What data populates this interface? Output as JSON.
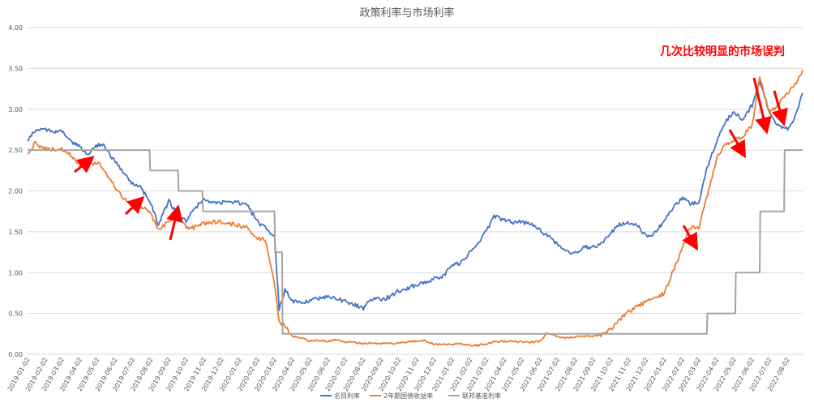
{
  "chart_data": {
    "type": "line",
    "title": "政策利率与市场利率",
    "xlabel": "",
    "ylabel": "",
    "ylim": [
      0,
      4
    ],
    "grid": "horizontal",
    "legend_position": "bottom",
    "y_ticks": [
      "0.00",
      "0.50",
      "1.00",
      "1.50",
      "2.00",
      "2.50",
      "3.00",
      "3.50",
      "4.00"
    ],
    "x_ticks": [
      "2019-01-02",
      "2019-02-02",
      "2019-03-02",
      "2019-04-02",
      "2019-05-02",
      "2019-06-02",
      "2019-07-02",
      "2019-08-02",
      "2019-09-02",
      "2019-10-02",
      "2019-11-02",
      "2019-12-02",
      "2020-01-02",
      "2020-02-02",
      "2020-03-02",
      "2020-04-02",
      "2020-05-02",
      "2020-06-02",
      "2020-07-02",
      "2020-08-02",
      "2020-09-02",
      "2020-10-02",
      "2020-11-02",
      "2020-12-02",
      "2021-01-02",
      "2021-02-02",
      "2021-03-02",
      "2021-04-02",
      "2021-05-02",
      "2021-06-02",
      "2021-07-02",
      "2021-08-02",
      "2021-09-02",
      "2021-10-02",
      "2021-11-02",
      "2021-12-02",
      "2022-01-02",
      "2022-02-02",
      "2022-03-02",
      "2022-04-02",
      "2022-05-02",
      "2022-06-02",
      "2022-07-02",
      "2022-08-02"
    ],
    "series": [
      {
        "name": "名目利率",
        "color": "#4472c4",
        "points": [
          [
            "2019-01-02",
            2.62
          ],
          [
            "2019-01-15",
            2.74
          ],
          [
            "2019-02-02",
            2.75
          ],
          [
            "2019-02-20",
            2.72
          ],
          [
            "2019-03-02",
            2.73
          ],
          [
            "2019-03-15",
            2.62
          ],
          [
            "2019-04-02",
            2.55
          ],
          [
            "2019-04-15",
            2.45
          ],
          [
            "2019-05-02",
            2.56
          ],
          [
            "2019-05-15",
            2.55
          ],
          [
            "2019-06-02",
            2.35
          ],
          [
            "2019-06-15",
            2.24
          ],
          [
            "2019-07-02",
            2.08
          ],
          [
            "2019-07-15",
            2.05
          ],
          [
            "2019-08-02",
            1.85
          ],
          [
            "2019-08-15",
            1.58
          ],
          [
            "2019-09-02",
            1.88
          ],
          [
            "2019-09-15",
            1.72
          ],
          [
            "2019-10-02",
            1.62
          ],
          [
            "2019-10-15",
            1.78
          ],
          [
            "2019-11-02",
            1.9
          ],
          [
            "2019-11-15",
            1.85
          ],
          [
            "2019-12-02",
            1.85
          ],
          [
            "2019-12-15",
            1.88
          ],
          [
            "2020-01-02",
            1.85
          ],
          [
            "2020-01-15",
            1.82
          ],
          [
            "2020-02-02",
            1.62
          ],
          [
            "2020-02-15",
            1.55
          ],
          [
            "2020-03-02",
            1.45
          ],
          [
            "2020-03-10",
            0.55
          ],
          [
            "2020-03-20",
            0.8
          ],
          [
            "2020-04-02",
            0.65
          ],
          [
            "2020-04-15",
            0.62
          ],
          [
            "2020-05-02",
            0.66
          ],
          [
            "2020-05-15",
            0.68
          ],
          [
            "2020-06-02",
            0.7
          ],
          [
            "2020-06-15",
            0.68
          ],
          [
            "2020-07-02",
            0.65
          ],
          [
            "2020-07-15",
            0.62
          ],
          [
            "2020-08-02",
            0.56
          ],
          [
            "2020-08-15",
            0.68
          ],
          [
            "2020-09-02",
            0.67
          ],
          [
            "2020-09-15",
            0.7
          ],
          [
            "2020-10-02",
            0.78
          ],
          [
            "2020-10-15",
            0.8
          ],
          [
            "2020-11-02",
            0.86
          ],
          [
            "2020-11-15",
            0.88
          ],
          [
            "2020-12-02",
            0.92
          ],
          [
            "2020-12-15",
            0.95
          ],
          [
            "2021-01-02",
            1.08
          ],
          [
            "2021-01-15",
            1.12
          ],
          [
            "2021-02-02",
            1.25
          ],
          [
            "2021-02-15",
            1.35
          ],
          [
            "2021-03-02",
            1.52
          ],
          [
            "2021-03-15",
            1.68
          ],
          [
            "2021-04-02",
            1.65
          ],
          [
            "2021-04-15",
            1.62
          ],
          [
            "2021-05-02",
            1.62
          ],
          [
            "2021-05-15",
            1.6
          ],
          [
            "2021-06-02",
            1.52
          ],
          [
            "2021-06-15",
            1.45
          ],
          [
            "2021-07-02",
            1.35
          ],
          [
            "2021-07-15",
            1.25
          ],
          [
            "2021-08-02",
            1.25
          ],
          [
            "2021-08-15",
            1.3
          ],
          [
            "2021-09-02",
            1.32
          ],
          [
            "2021-09-15",
            1.35
          ],
          [
            "2021-10-02",
            1.48
          ],
          [
            "2021-10-15",
            1.58
          ],
          [
            "2021-11-02",
            1.62
          ],
          [
            "2021-11-15",
            1.58
          ],
          [
            "2021-12-02",
            1.45
          ],
          [
            "2021-12-15",
            1.48
          ],
          [
            "2022-01-02",
            1.63
          ],
          [
            "2022-01-15",
            1.78
          ],
          [
            "2022-02-02",
            1.92
          ],
          [
            "2022-02-15",
            1.85
          ],
          [
            "2022-03-02",
            1.85
          ],
          [
            "2022-03-15",
            2.25
          ],
          [
            "2022-04-02",
            2.6
          ],
          [
            "2022-04-15",
            2.82
          ],
          [
            "2022-05-02",
            2.98
          ],
          [
            "2022-05-15",
            2.86
          ],
          [
            "2022-06-02",
            3.05
          ],
          [
            "2022-06-15",
            3.35
          ],
          [
            "2022-07-02",
            2.95
          ],
          [
            "2022-07-15",
            2.82
          ],
          [
            "2022-08-02",
            2.75
          ],
          [
            "2022-08-15",
            2.9
          ],
          [
            "2022-08-28",
            3.2
          ]
        ]
      },
      {
        "name": "2年期国债收益率",
        "color": "#ed7d31",
        "points": [
          [
            "2019-01-02",
            2.45
          ],
          [
            "2019-01-15",
            2.58
          ],
          [
            "2019-02-02",
            2.52
          ],
          [
            "2019-02-20",
            2.5
          ],
          [
            "2019-03-02",
            2.52
          ],
          [
            "2019-03-15",
            2.45
          ],
          [
            "2019-04-02",
            2.32
          ],
          [
            "2019-04-15",
            2.33
          ],
          [
            "2019-05-02",
            2.35
          ],
          [
            "2019-05-15",
            2.25
          ],
          [
            "2019-06-02",
            2.05
          ],
          [
            "2019-06-15",
            1.92
          ],
          [
            "2019-07-02",
            1.85
          ],
          [
            "2019-07-15",
            1.82
          ],
          [
            "2019-08-02",
            1.72
          ],
          [
            "2019-08-15",
            1.52
          ],
          [
            "2019-09-02",
            1.62
          ],
          [
            "2019-09-15",
            1.72
          ],
          [
            "2019-10-02",
            1.55
          ],
          [
            "2019-10-15",
            1.55
          ],
          [
            "2019-11-02",
            1.6
          ],
          [
            "2019-11-15",
            1.62
          ],
          [
            "2019-12-02",
            1.62
          ],
          [
            "2019-12-15",
            1.6
          ],
          [
            "2020-01-02",
            1.58
          ],
          [
            "2020-01-15",
            1.55
          ],
          [
            "2020-02-02",
            1.42
          ],
          [
            "2020-02-15",
            1.4
          ],
          [
            "2020-03-02",
            0.85
          ],
          [
            "2020-03-10",
            0.4
          ],
          [
            "2020-03-20",
            0.35
          ],
          [
            "2020-04-02",
            0.22
          ],
          [
            "2020-04-15",
            0.2
          ],
          [
            "2020-05-02",
            0.16
          ],
          [
            "2020-05-15",
            0.17
          ],
          [
            "2020-06-02",
            0.16
          ],
          [
            "2020-06-15",
            0.18
          ],
          [
            "2020-07-02",
            0.15
          ],
          [
            "2020-07-15",
            0.15
          ],
          [
            "2020-08-02",
            0.13
          ],
          [
            "2020-08-15",
            0.14
          ],
          [
            "2020-09-02",
            0.13
          ],
          [
            "2020-09-15",
            0.13
          ],
          [
            "2020-10-02",
            0.14
          ],
          [
            "2020-10-15",
            0.15
          ],
          [
            "2020-11-02",
            0.16
          ],
          [
            "2020-11-15",
            0.17
          ],
          [
            "2020-12-02",
            0.12
          ],
          [
            "2020-12-15",
            0.12
          ],
          [
            "2021-01-02",
            0.12
          ],
          [
            "2021-01-15",
            0.13
          ],
          [
            "2021-02-02",
            0.11
          ],
          [
            "2021-02-15",
            0.11
          ],
          [
            "2021-03-02",
            0.13
          ],
          [
            "2021-03-15",
            0.15
          ],
          [
            "2021-04-02",
            0.16
          ],
          [
            "2021-04-15",
            0.16
          ],
          [
            "2021-05-02",
            0.15
          ],
          [
            "2021-05-15",
            0.15
          ],
          [
            "2021-06-02",
            0.16
          ],
          [
            "2021-06-15",
            0.26
          ],
          [
            "2021-07-02",
            0.22
          ],
          [
            "2021-07-15",
            0.2
          ],
          [
            "2021-08-02",
            0.21
          ],
          [
            "2021-08-15",
            0.22
          ],
          [
            "2021-09-02",
            0.22
          ],
          [
            "2021-09-15",
            0.24
          ],
          [
            "2021-10-02",
            0.3
          ],
          [
            "2021-10-15",
            0.42
          ],
          [
            "2021-11-02",
            0.52
          ],
          [
            "2021-11-15",
            0.58
          ],
          [
            "2021-12-02",
            0.65
          ],
          [
            "2021-12-15",
            0.68
          ],
          [
            "2022-01-02",
            0.75
          ],
          [
            "2022-01-15",
            0.98
          ],
          [
            "2022-02-02",
            1.3
          ],
          [
            "2022-02-15",
            1.55
          ],
          [
            "2022-03-02",
            1.55
          ],
          [
            "2022-03-15",
            1.9
          ],
          [
            "2022-04-02",
            2.4
          ],
          [
            "2022-04-15",
            2.55
          ],
          [
            "2022-05-02",
            2.62
          ],
          [
            "2022-05-15",
            2.65
          ],
          [
            "2022-06-02",
            2.8
          ],
          [
            "2022-06-15",
            3.4
          ],
          [
            "2022-07-02",
            2.95
          ],
          [
            "2022-07-15",
            3.05
          ],
          [
            "2022-08-02",
            3.2
          ],
          [
            "2022-08-15",
            3.3
          ],
          [
            "2022-08-28",
            3.48
          ]
        ]
      },
      {
        "name": "联邦基准利率",
        "color": "#a5a5a5",
        "points": [
          [
            "2019-01-02",
            2.5
          ],
          [
            "2019-07-31",
            2.5
          ],
          [
            "2019-08-01",
            2.25
          ],
          [
            "2019-09-18",
            2.25
          ],
          [
            "2019-09-19",
            2.0
          ],
          [
            "2019-10-30",
            2.0
          ],
          [
            "2019-10-31",
            1.75
          ],
          [
            "2020-03-02",
            1.75
          ],
          [
            "2020-03-03",
            1.25
          ],
          [
            "2020-03-15",
            1.25
          ],
          [
            "2020-03-16",
            0.25
          ],
          [
            "2022-03-16",
            0.25
          ],
          [
            "2022-03-17",
            0.5
          ],
          [
            "2022-05-04",
            0.5
          ],
          [
            "2022-05-05",
            1.0
          ],
          [
            "2022-06-15",
            1.0
          ],
          [
            "2022-06-16",
            1.75
          ],
          [
            "2022-07-27",
            1.75
          ],
          [
            "2022-07-28",
            2.5
          ],
          [
            "2022-08-28",
            2.5
          ]
        ]
      }
    ],
    "annotations": [
      {
        "text": "几次比较明显的市场误判",
        "color": "#ff0000"
      }
    ]
  }
}
